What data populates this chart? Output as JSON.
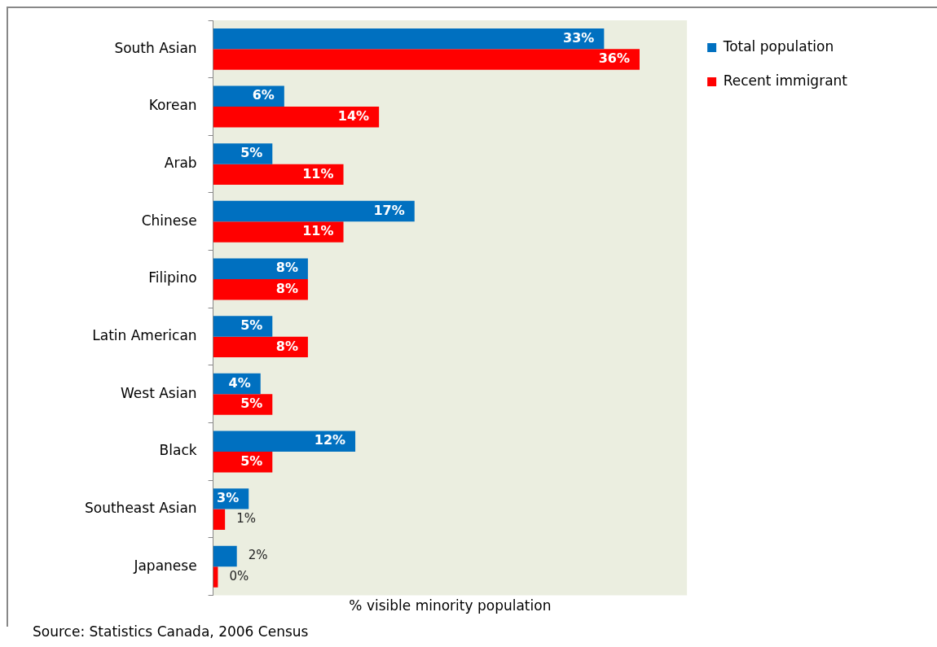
{
  "chart_data": {
    "type": "bar",
    "orientation": "horizontal",
    "categories": [
      "South Asian",
      "Korean",
      "Arab",
      "Chinese",
      "Filipino",
      "Latin American",
      "West Asian",
      "Black",
      "Southeast Asian",
      "Japanese"
    ],
    "series": [
      {
        "name": "Total population",
        "color": "#0070c0",
        "values": [
          33,
          6,
          5,
          17,
          8,
          5,
          4,
          12,
          3,
          2
        ],
        "value_labels": [
          "33%",
          "6%",
          "5%",
          "17%",
          "8%",
          "5%",
          "4%",
          "12%",
          "3%",
          "2%"
        ]
      },
      {
        "name": "Recent immigrant",
        "color": "#ff0000",
        "values": [
          36,
          14,
          11,
          11,
          8,
          8,
          5,
          5,
          1,
          0.4
        ],
        "value_labels": [
          "36%",
          "14%",
          "11%",
          "11%",
          "8%",
          "8%",
          "5%",
          "5%",
          "1%",
          "0%"
        ]
      }
    ],
    "xlim": [
      0,
      40
    ],
    "xlabel": "% visible minority population",
    "tick_labels": "y",
    "grid": false,
    "legend": "right",
    "annotations": [
      "Source: Statistics Canada, 2006 Census"
    ]
  }
}
